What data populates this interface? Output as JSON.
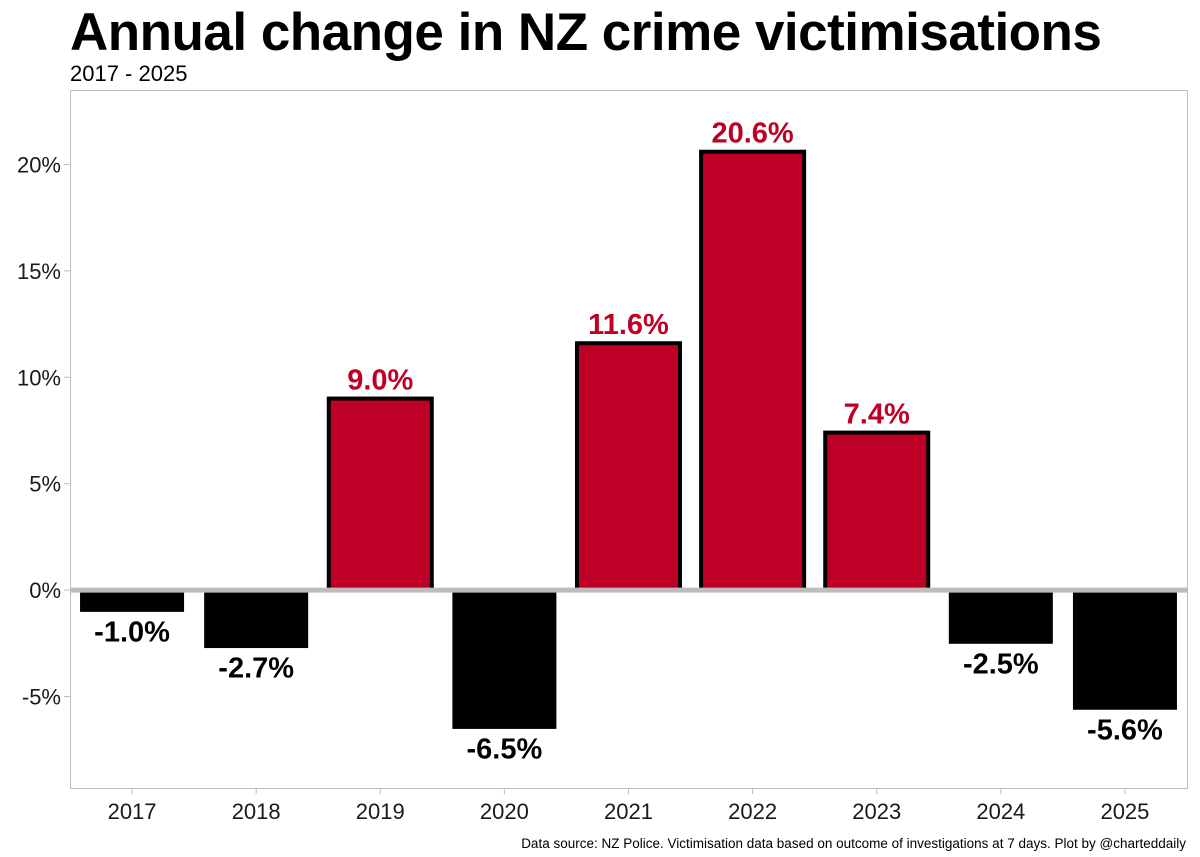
{
  "chart_data": {
    "type": "bar",
    "title": "Annual change in NZ crime victimisations",
    "subtitle": "2017 - 2025",
    "source": "Data source: NZ Police. Victimisation data based on outcome of investigations at 7 days. Plot by @charteddaily",
    "xlabel": "",
    "ylabel": "",
    "categories": [
      "2017",
      "2018",
      "2019",
      "2020",
      "2021",
      "2022",
      "2023",
      "2024",
      "2025"
    ],
    "values": [
      -1.0,
      -2.7,
      9.0,
      -6.5,
      11.6,
      20.6,
      7.4,
      -2.5,
      -5.6
    ],
    "value_labels": [
      "-1.0%",
      "-2.7%",
      "9.0%",
      "-6.5%",
      "11.6%",
      "20.6%",
      "7.4%",
      "-2.5%",
      "-5.6%"
    ],
    "ylim": [
      -9.3,
      23.5
    ],
    "yticks": [
      -5,
      0,
      5,
      10,
      15,
      20
    ],
    "ytick_labels": [
      "-5%",
      "0%",
      "5%",
      "10%",
      "15%",
      "20%"
    ],
    "grid": false,
    "legend": "none",
    "colors": {
      "positive": "#BE0027",
      "negative": "#000000",
      "zero_line": "#BDBDBD",
      "axes_border": "#BDBDBD"
    }
  }
}
